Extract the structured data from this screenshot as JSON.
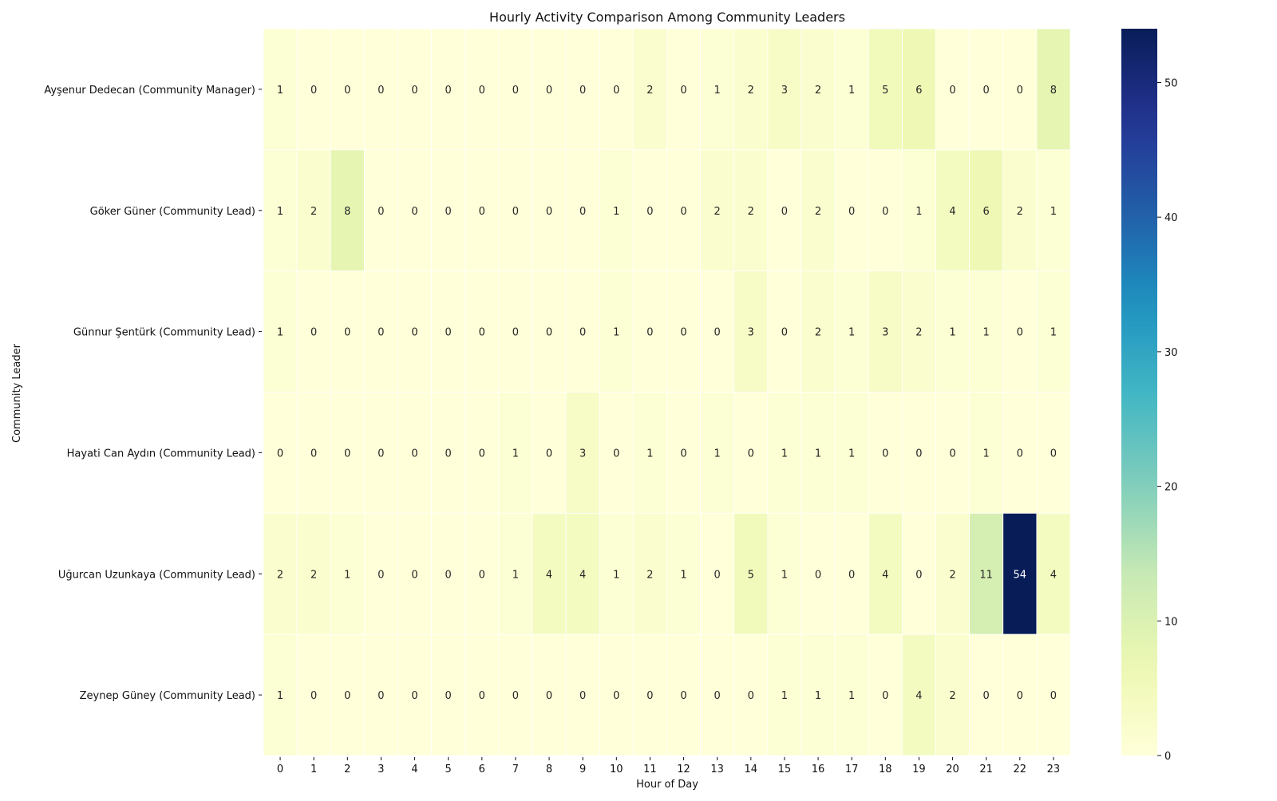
{
  "chart_data": {
    "type": "heatmap",
    "title": "Hourly Activity Comparison Among Community Leaders",
    "xlabel": "Hour of Day",
    "ylabel": "Community Leader",
    "x": [
      0,
      1,
      2,
      3,
      4,
      5,
      6,
      7,
      8,
      9,
      10,
      11,
      12,
      13,
      14,
      15,
      16,
      17,
      18,
      19,
      20,
      21,
      22,
      23
    ],
    "x_tick_labels": [
      "0",
      "1",
      "2",
      "3",
      "4",
      "5",
      "6",
      "7",
      "8",
      "9",
      "10",
      "11",
      "12",
      "13",
      "14",
      "15",
      "16",
      "17",
      "18",
      "19",
      "20",
      "21",
      "22",
      "23"
    ],
    "y": [
      "Ayşenur Dedecan (Community Manager)",
      "Göker Güner (Community Lead)",
      "Günnur Şentürk (Community Lead)",
      "Hayati Can Aydın (Community Lead)",
      "Uğurcan Uzunkaya (Community Lead)",
      "Zeynep Güney (Community Lead)"
    ],
    "values": [
      [
        1,
        0,
        0,
        0,
        0,
        0,
        0,
        0,
        0,
        0,
        0,
        2,
        0,
        1,
        2,
        3,
        2,
        1,
        5,
        6,
        0,
        0,
        0,
        8
      ],
      [
        1,
        2,
        8,
        0,
        0,
        0,
        0,
        0,
        0,
        0,
        1,
        0,
        0,
        2,
        2,
        0,
        2,
        0,
        0,
        1,
        4,
        6,
        2,
        1
      ],
      [
        1,
        0,
        0,
        0,
        0,
        0,
        0,
        0,
        0,
        0,
        1,
        0,
        0,
        0,
        3,
        0,
        2,
        1,
        3,
        2,
        1,
        1,
        0,
        1
      ],
      [
        0,
        0,
        0,
        0,
        0,
        0,
        0,
        1,
        0,
        3,
        0,
        1,
        0,
        1,
        0,
        1,
        1,
        1,
        0,
        0,
        0,
        1,
        0,
        0
      ],
      [
        2,
        2,
        1,
        0,
        0,
        0,
        0,
        1,
        4,
        4,
        1,
        2,
        1,
        0,
        5,
        1,
        0,
        0,
        4,
        0,
        2,
        11,
        54,
        4
      ],
      [
        1,
        0,
        0,
        0,
        0,
        0,
        0,
        0,
        0,
        0,
        0,
        0,
        0,
        0,
        0,
        1,
        1,
        1,
        0,
        4,
        2,
        0,
        0,
        0
      ]
    ],
    "annotated": true,
    "colormap": "YlGnBu",
    "colorbar": {
      "vmin": 0,
      "vmax": 54,
      "ticks": [
        0,
        10,
        20,
        30,
        40,
        50
      ],
      "tick_labels": [
        "0",
        "10",
        "20",
        "30",
        "40",
        "50"
      ]
    },
    "grid": false,
    "legend": "none"
  }
}
